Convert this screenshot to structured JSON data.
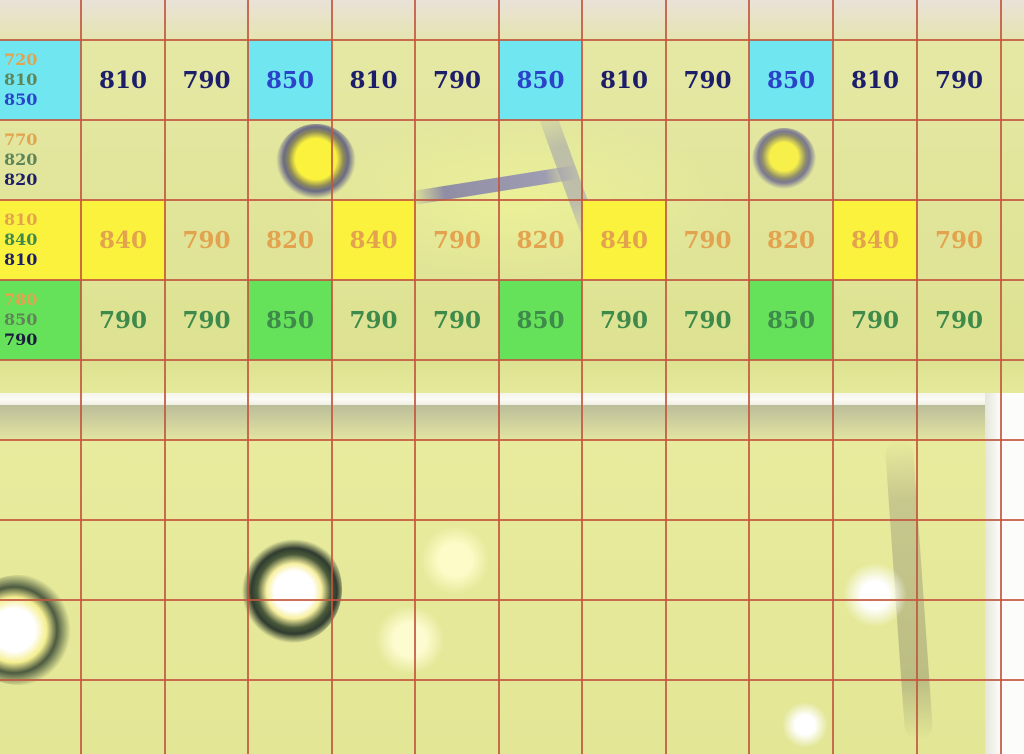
{
  "grid": {
    "rows": [
      {
        "id": "row-1",
        "fill_color": "#6fe6f0",
        "stack": [
          {
            "text": "720",
            "color": "#e3a34e"
          },
          {
            "text": "810",
            "color": "#5e8558"
          },
          {
            "text": "850",
            "color": "#2a43c8"
          }
        ],
        "cells": [
          {
            "text": "810",
            "color": "#1d1e6a",
            "filled": false
          },
          {
            "text": "790",
            "color": "#1d1e6a",
            "filled": false
          },
          {
            "text": "850",
            "color": "#2a43c8",
            "filled": true
          },
          {
            "text": "810",
            "color": "#1d1e6a",
            "filled": false
          },
          {
            "text": "790",
            "color": "#1d1e6a",
            "filled": false
          },
          {
            "text": "850",
            "color": "#2a43c8",
            "filled": true
          },
          {
            "text": "810",
            "color": "#1d1e6a",
            "filled": false
          },
          {
            "text": "790",
            "color": "#1d1e6a",
            "filled": false
          },
          {
            "text": "850",
            "color": "#2a43c8",
            "filled": true
          },
          {
            "text": "810",
            "color": "#1d1e6a",
            "filled": false
          },
          {
            "text": "790",
            "color": "#1d1e6a",
            "filled": false
          }
        ]
      },
      {
        "id": "row-2",
        "fill_color": "",
        "stack": [
          {
            "text": "770",
            "color": "#e3a34e"
          },
          {
            "text": "820",
            "color": "#5e8558"
          },
          {
            "text": "820",
            "color": "#1d1e6a"
          }
        ],
        "cells": []
      },
      {
        "id": "row-3",
        "fill_color": "#fbf23e",
        "stack": [
          {
            "text": "810",
            "color": "#e3a34e"
          },
          {
            "text": "840",
            "color": "#3d8a4a"
          },
          {
            "text": "810",
            "color": "#1d1e6a"
          }
        ],
        "cells": [
          {
            "text": "840",
            "color": "#e3a34e",
            "filled": true
          },
          {
            "text": "790",
            "color": "#e3a34e",
            "filled": false
          },
          {
            "text": "820",
            "color": "#e3a34e",
            "filled": false
          },
          {
            "text": "840",
            "color": "#e3a34e",
            "filled": true
          },
          {
            "text": "790",
            "color": "#e3a34e",
            "filled": false
          },
          {
            "text": "820",
            "color": "#e3a34e",
            "filled": false
          },
          {
            "text": "840",
            "color": "#e3a34e",
            "filled": true
          },
          {
            "text": "790",
            "color": "#e3a34e",
            "filled": false
          },
          {
            "text": "820",
            "color": "#e3a34e",
            "filled": false
          },
          {
            "text": "840",
            "color": "#e3a34e",
            "filled": true
          },
          {
            "text": "790",
            "color": "#e3a34e",
            "filled": false
          }
        ]
      },
      {
        "id": "row-4",
        "fill_color": "#66e25a",
        "stack": [
          {
            "text": "780",
            "color": "#e3a34e"
          },
          {
            "text": "850",
            "color": "#5e8558"
          },
          {
            "text": "790",
            "color": "#1b1b40"
          }
        ],
        "cells": [
          {
            "text": "790",
            "color": "#3d8a4a",
            "filled": false
          },
          {
            "text": "790",
            "color": "#3d8a4a",
            "filled": false
          },
          {
            "text": "850",
            "color": "#3d8a4a",
            "filled": true
          },
          {
            "text": "790",
            "color": "#3d8a4a",
            "filled": false
          },
          {
            "text": "790",
            "color": "#3d8a4a",
            "filled": false
          },
          {
            "text": "850",
            "color": "#3d8a4a",
            "filled": true
          },
          {
            "text": "790",
            "color": "#3d8a4a",
            "filled": false
          },
          {
            "text": "790",
            "color": "#3d8a4a",
            "filled": false
          },
          {
            "text": "850",
            "color": "#3d8a4a",
            "filled": true
          },
          {
            "text": "790",
            "color": "#3d8a4a",
            "filled": false
          },
          {
            "text": "790",
            "color": "#3d8a4a",
            "filled": false
          }
        ]
      }
    ],
    "line_color": "#c2563e"
  }
}
